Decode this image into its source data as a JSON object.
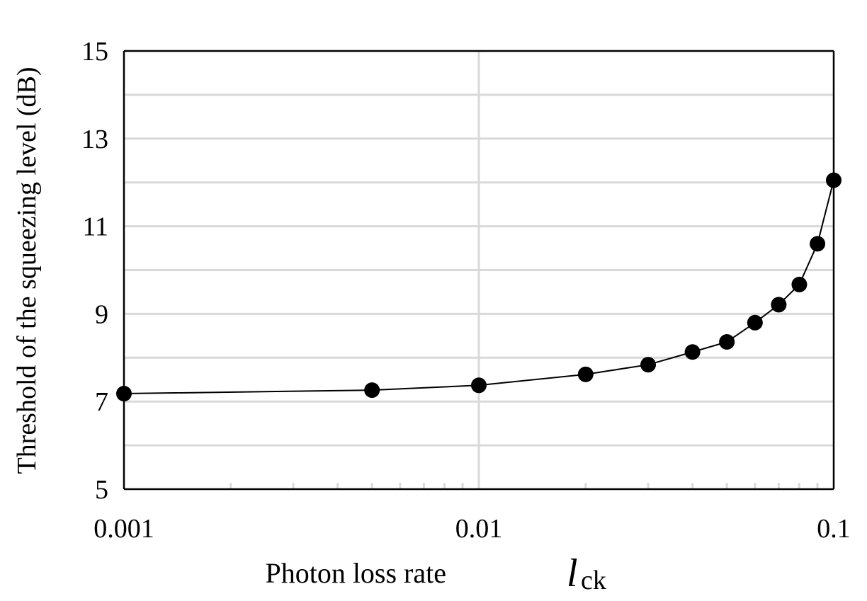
{
  "chart_data": {
    "type": "line",
    "title": "",
    "xlabel": "Photon loss rate",
    "xlabel_symbol": "l",
    "xlabel_subscript": "ck",
    "ylabel": "Threshold of the squeezing level (dB)",
    "x_scale": "log",
    "xlim": [
      0.001,
      0.1
    ],
    "ylim": [
      5,
      15
    ],
    "x_ticks": [
      "0.001",
      "0.01",
      "0.1"
    ],
    "y_ticks": [
      "5",
      "7",
      "9",
      "11",
      "13",
      "15"
    ],
    "grid": true,
    "marker": "circle",
    "colors": {
      "line": "#000000",
      "marker": "#000000",
      "grid": "#d9d9d9"
    },
    "series": [
      {
        "x": [
          0.001,
          0.005,
          0.01,
          0.02,
          0.03,
          0.04,
          0.05,
          0.06,
          0.07,
          0.08,
          0.09,
          0.1
        ],
        "y": [
          7.18,
          7.26,
          7.37,
          7.62,
          7.84,
          8.13,
          8.36,
          8.8,
          9.21,
          9.67,
          10.6,
          12.05
        ]
      }
    ]
  }
}
